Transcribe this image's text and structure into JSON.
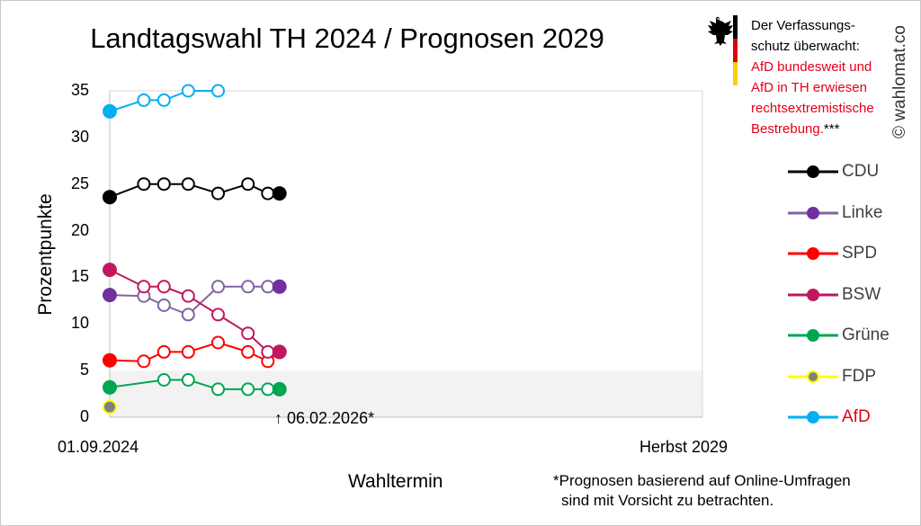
{
  "chart_data": {
    "type": "line",
    "title": "Landtagswahl TH 2024 / Prognosen 2029",
    "ylabel": "Prozentpunkte",
    "xlabel": "Wahltermin",
    "ylim": [
      0,
      35
    ],
    "yticks": [
      "0",
      "5",
      "10",
      "15",
      "20",
      "25",
      "30",
      "35"
    ],
    "x_start_label": "01.09.2024",
    "x_end_label": "Herbst 2029",
    "x_range": [
      "2024-09-01",
      "2029-09-01"
    ],
    "shaded_band": [
      0,
      5
    ],
    "grid": false,
    "legend_position": "right",
    "current_marker": {
      "date": "2026-02-06",
      "label": "↑ 06.02.2026*"
    },
    "series": [
      {
        "name": "CDU",
        "color": "#000000",
        "fill": "#000000",
        "x": [
          "2024-09-01",
          "2024-12-15",
          "2025-02-15",
          "2025-05-01",
          "2025-08-01",
          "2025-11-01",
          "2026-01-01",
          "2026-02-06"
        ],
        "values": [
          23.6,
          25,
          25,
          25,
          24,
          25,
          24,
          24
        ]
      },
      {
        "name": "Linke",
        "color": "#8064a2",
        "fill": "#7030a0",
        "x": [
          "2024-09-01",
          "2024-12-15",
          "2025-02-15",
          "2025-05-01",
          "2025-08-01",
          "2025-11-01",
          "2026-01-01",
          "2026-02-06"
        ],
        "values": [
          13.1,
          13,
          12,
          11,
          14,
          14,
          14,
          14
        ]
      },
      {
        "name": "SPD",
        "color": "#ff0000",
        "fill": "#ff0000",
        "x": [
          "2024-09-01",
          "2024-12-15",
          "2025-02-15",
          "2025-05-01",
          "2025-08-01",
          "2025-11-01",
          "2026-01-01",
          "2026-02-06"
        ],
        "values": [
          6.1,
          6,
          7,
          7,
          8,
          7,
          6,
          7
        ]
      },
      {
        "name": "BSW",
        "color": "#c0185e",
        "fill": "#c0185e",
        "x": [
          "2024-09-01",
          "2024-12-15",
          "2025-02-15",
          "2025-05-01",
          "2025-08-01",
          "2025-11-01",
          "2026-01-01",
          "2026-02-06"
        ],
        "values": [
          15.8,
          14,
          14,
          13,
          11,
          9,
          7,
          7
        ]
      },
      {
        "name": "Grüne",
        "color": "#00a651",
        "fill": "#00a651",
        "x": [
          "2024-09-01",
          "2025-02-15",
          "2025-05-01",
          "2025-08-01",
          "2025-11-01",
          "2026-01-01",
          "2026-02-06"
        ],
        "values": [
          3.2,
          4,
          4,
          3,
          3,
          3,
          3
        ]
      },
      {
        "name": "FDP",
        "color": "#ffff00",
        "fill": "#808080",
        "x": [
          "2024-09-01"
        ],
        "values": [
          1.1
        ]
      },
      {
        "name": "AfD",
        "color": "#00b0f0",
        "fill": "#00b0f0",
        "name_color": "#e2001a",
        "x": [
          "2024-09-01",
          "2024-12-15",
          "2025-02-15",
          "2025-05-01",
          "2025-08-01"
        ],
        "values": [
          32.8,
          34,
          34,
          35,
          35
        ]
      }
    ]
  },
  "notice": {
    "line1": "Der Verfassungs-",
    "line2": "schutz überwacht:",
    "line3": "AfD bundesweit und",
    "line4": "AfD in TH erwiesen",
    "line5": "rechtsextremistische",
    "line6_red": "Bestrebung.",
    "line6_suffix": "***",
    "accent_color": "#e2001a"
  },
  "footnote": {
    "line1": "*Prognosen basierend auf Online-Umfragen",
    "line2": "sind mit Vorsicht zu betrachten."
  },
  "copyright": "© wahlomat.co",
  "emblem": "federal-eagle-icon",
  "flag_colors": [
    "#000000",
    "#dd0000",
    "#ffce00"
  ]
}
